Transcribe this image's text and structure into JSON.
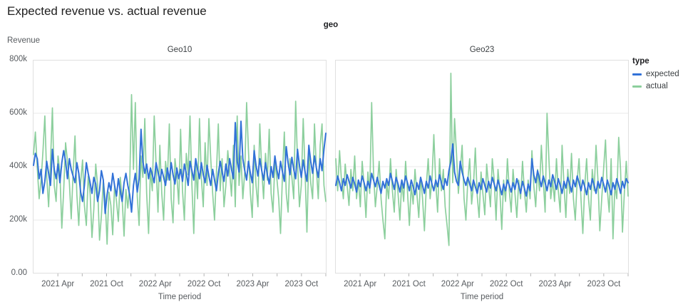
{
  "page": {
    "title": "Expected revenue vs. actual revenue"
  },
  "chart_data": {
    "type": "line",
    "title": "Expected revenue vs. actual revenue",
    "facet_field_label": "geo",
    "ylabel": "Revenue",
    "xlabel": "Time period",
    "value_unit": "thousands",
    "ylim": [
      0,
      800
    ],
    "grid": true,
    "y_ticks": [
      {
        "value": 0,
        "label": "0.00"
      },
      {
        "value": 200,
        "label": "200k"
      },
      {
        "value": 400,
        "label": "400k"
      },
      {
        "value": 600,
        "label": "600k"
      },
      {
        "value": 800,
        "label": "800k"
      }
    ],
    "x_range_months": 36,
    "x_ticks": [
      {
        "month": 3,
        "label": "2021 Apr"
      },
      {
        "month": 9,
        "label": "2021 Oct"
      },
      {
        "month": 15,
        "label": "2022 Apr"
      },
      {
        "month": 21,
        "label": "2022 Oct"
      },
      {
        "month": 27,
        "label": "2023 Apr"
      },
      {
        "month": 33,
        "label": "2023 Oct"
      }
    ],
    "x_minor_ticks": [
      6,
      12,
      18,
      24,
      30,
      36
    ],
    "legend": {
      "title": "type",
      "position": "right",
      "entries": [
        {
          "label": "expected",
          "color": "#3272d8"
        },
        {
          "label": "actual",
          "color": "#8ccf9d"
        }
      ]
    },
    "facets": [
      {
        "title": "Geo10",
        "series": [
          {
            "name": "expected",
            "values": [
              405,
              450,
              430,
              355,
              390,
              300,
              345,
              420,
              375,
              330,
              465,
              390,
              355,
              410,
              340,
              415,
              460,
              420,
              355,
              430,
              390,
              365,
              340,
              415,
              375,
              305,
              270,
              330,
              415,
              375,
              340,
              300,
              360,
              335,
              270,
              310,
              385,
              350,
              225,
              295,
              340,
              310,
              375,
              330,
              290,
              355,
              310,
              270,
              340,
              375,
              330,
              295,
              230,
              330,
              375,
              305,
              355,
              540,
              420,
              375,
              410,
              355,
              395,
              370,
              340,
              415,
              380,
              345,
              390,
              360,
              330,
              395,
              350,
              415,
              370,
              335,
              395,
              355,
              390,
              345,
              410,
              375,
              330,
              420,
              385,
              350,
              430,
              390,
              355,
              415,
              370,
              340,
              405,
              365,
              330,
              390,
              350,
              310,
              375,
              420,
              380,
              345,
              410,
              365,
              430,
              390,
              355,
              565,
              420,
              380,
              570,
              430,
              385,
              350,
              420,
              375,
              340,
              460,
              405,
              365,
              430,
              385,
              350,
              415,
              370,
              335,
              400,
              360,
              440,
              390,
              355,
              420,
              380,
              345,
              475,
              415,
              370,
              435,
              390,
              355,
              465,
              405,
              360,
              425,
              380,
              345,
              480,
              420,
              375,
              440,
              395,
              360,
              430,
              385,
              465,
              525
            ]
          },
          {
            "name": "actual",
            "values": [
              445,
              530,
              395,
              280,
              350,
              455,
              590,
              365,
              250,
              415,
              620,
              330,
              270,
              440,
              380,
              170,
              310,
              490,
              420,
              340,
              205,
              375,
              515,
              295,
              180,
              340,
              425,
              255,
              180,
              365,
              300,
              135,
              240,
              410,
              330,
              125,
              215,
              350,
              280,
              110,
              305,
              255,
              145,
              330,
              270,
              195,
              360,
              280,
              140,
              315,
              245,
              330,
              670,
              390,
              640,
              290,
              180,
              440,
              360,
              580,
              300,
              150,
              390,
              310,
              590,
              410,
              230,
              480,
              300,
              200,
              420,
              350,
              560,
              280,
              190,
              430,
              370,
              260,
              540,
              310,
              200,
              450,
              370,
              590,
              330,
              150,
              410,
              280,
              580,
              360,
              250,
              490,
              330,
              580,
              430,
              300,
              200,
              380,
              560,
              310,
              430,
              250,
              330,
              460,
              380,
              290,
              480,
              250,
              590,
              330,
              440,
              280,
              380,
              640,
              460,
              300,
              210,
              480,
              330,
              250,
              560,
              390,
              280,
              450,
              350,
              540,
              300,
              230,
              420,
              360,
              280,
              150,
              370,
              530,
              300,
              230,
              430,
              360,
              280,
              645,
              420,
              250,
              330,
              580,
              380,
              155,
              450,
              340,
              280,
              560,
              390,
              280,
              480,
              560,
              330,
              270
            ]
          }
        ]
      },
      {
        "title": "Geo23",
        "series": [
          {
            "name": "expected",
            "values": [
              330,
              365,
              340,
              310,
              355,
              330,
              370,
              345,
              320,
              360,
              335,
              305,
              350,
              325,
              365,
              340,
              310,
              345,
              320,
              375,
              350,
              325,
              360,
              330,
              300,
              345,
              320,
              355,
              330,
              375,
              345,
              315,
              360,
              335,
              305,
              350,
              320,
              365,
              340,
              310,
              350,
              325,
              295,
              340,
              315,
              360,
              330,
              300,
              345,
              320,
              365,
              335,
              310,
              350,
              325,
              370,
              340,
              315,
              355,
              330,
              385,
              420,
              485,
              380,
              345,
              330,
              420,
              380,
              350,
              330,
              360,
              335,
              310,
              350,
              325,
              300,
              340,
              315,
              355,
              330,
              305,
              345,
              320,
              360,
              335,
              310,
              350,
              325,
              295,
              335,
              310,
              350,
              330,
              305,
              340,
              315,
              355,
              330,
              300,
              345,
              320,
              290,
              335,
              310,
              430,
              370,
              340,
              385,
              355,
              325,
              365,
              340,
              310,
              350,
              325,
              370,
              345,
              315,
              355,
              330,
              300,
              345,
              320,
              360,
              335,
              305,
              350,
              325,
              365,
              340,
              310,
              350,
              325,
              295,
              340,
              315,
              355,
              330,
              300,
              345,
              320,
              360,
              335,
              305,
              350,
              325,
              295,
              340,
              315,
              355,
              330,
              300,
              345,
              320,
              355,
              340
            ]
          },
          {
            "name": "actual",
            "values": [
              430,
              310,
              460,
              350,
              280,
              410,
              330,
              255,
              390,
              310,
              440,
              280,
              350,
              250,
              420,
              330,
              210,
              380,
              300,
              640,
              380,
              250,
              330,
              420,
              280,
              200,
              130,
              340,
              280,
              430,
              310,
              230,
              390,
              300,
              200,
              350,
              270,
              420,
              310,
              180,
              330,
              260,
              390,
              300,
              210,
              360,
              280,
              160,
              330,
              430,
              280,
              350,
              520,
              340,
              230,
              430,
              310,
              390,
              250,
              180,
              105,
              750,
              340,
              580,
              450,
              300,
              390,
              480,
              280,
              200,
              350,
              430,
              260,
              330,
              470,
              290,
              210,
              380,
              300,
              220,
              410,
              330,
              250,
              430,
              350,
              200,
              390,
              310,
              165,
              350,
              270,
              430,
              310,
              230,
              390,
              300,
              210,
              350,
              280,
              420,
              310,
              230,
              350,
              280,
              460,
              330,
              250,
              390,
              310,
              480,
              350,
              230,
              600,
              430,
              280,
              350,
              270,
              430,
              310,
              230,
              480,
              330,
              210,
              390,
              300,
              450,
              280,
              200,
              350,
              430,
              280,
              150,
              330,
              430,
              280,
              200,
              390,
              310,
              480,
              350,
              160,
              280,
              390,
              500,
              310,
              230,
              430,
              130,
              330,
              280,
              510,
              390,
              155,
              300,
              420,
              290
            ]
          }
        ]
      }
    ]
  }
}
